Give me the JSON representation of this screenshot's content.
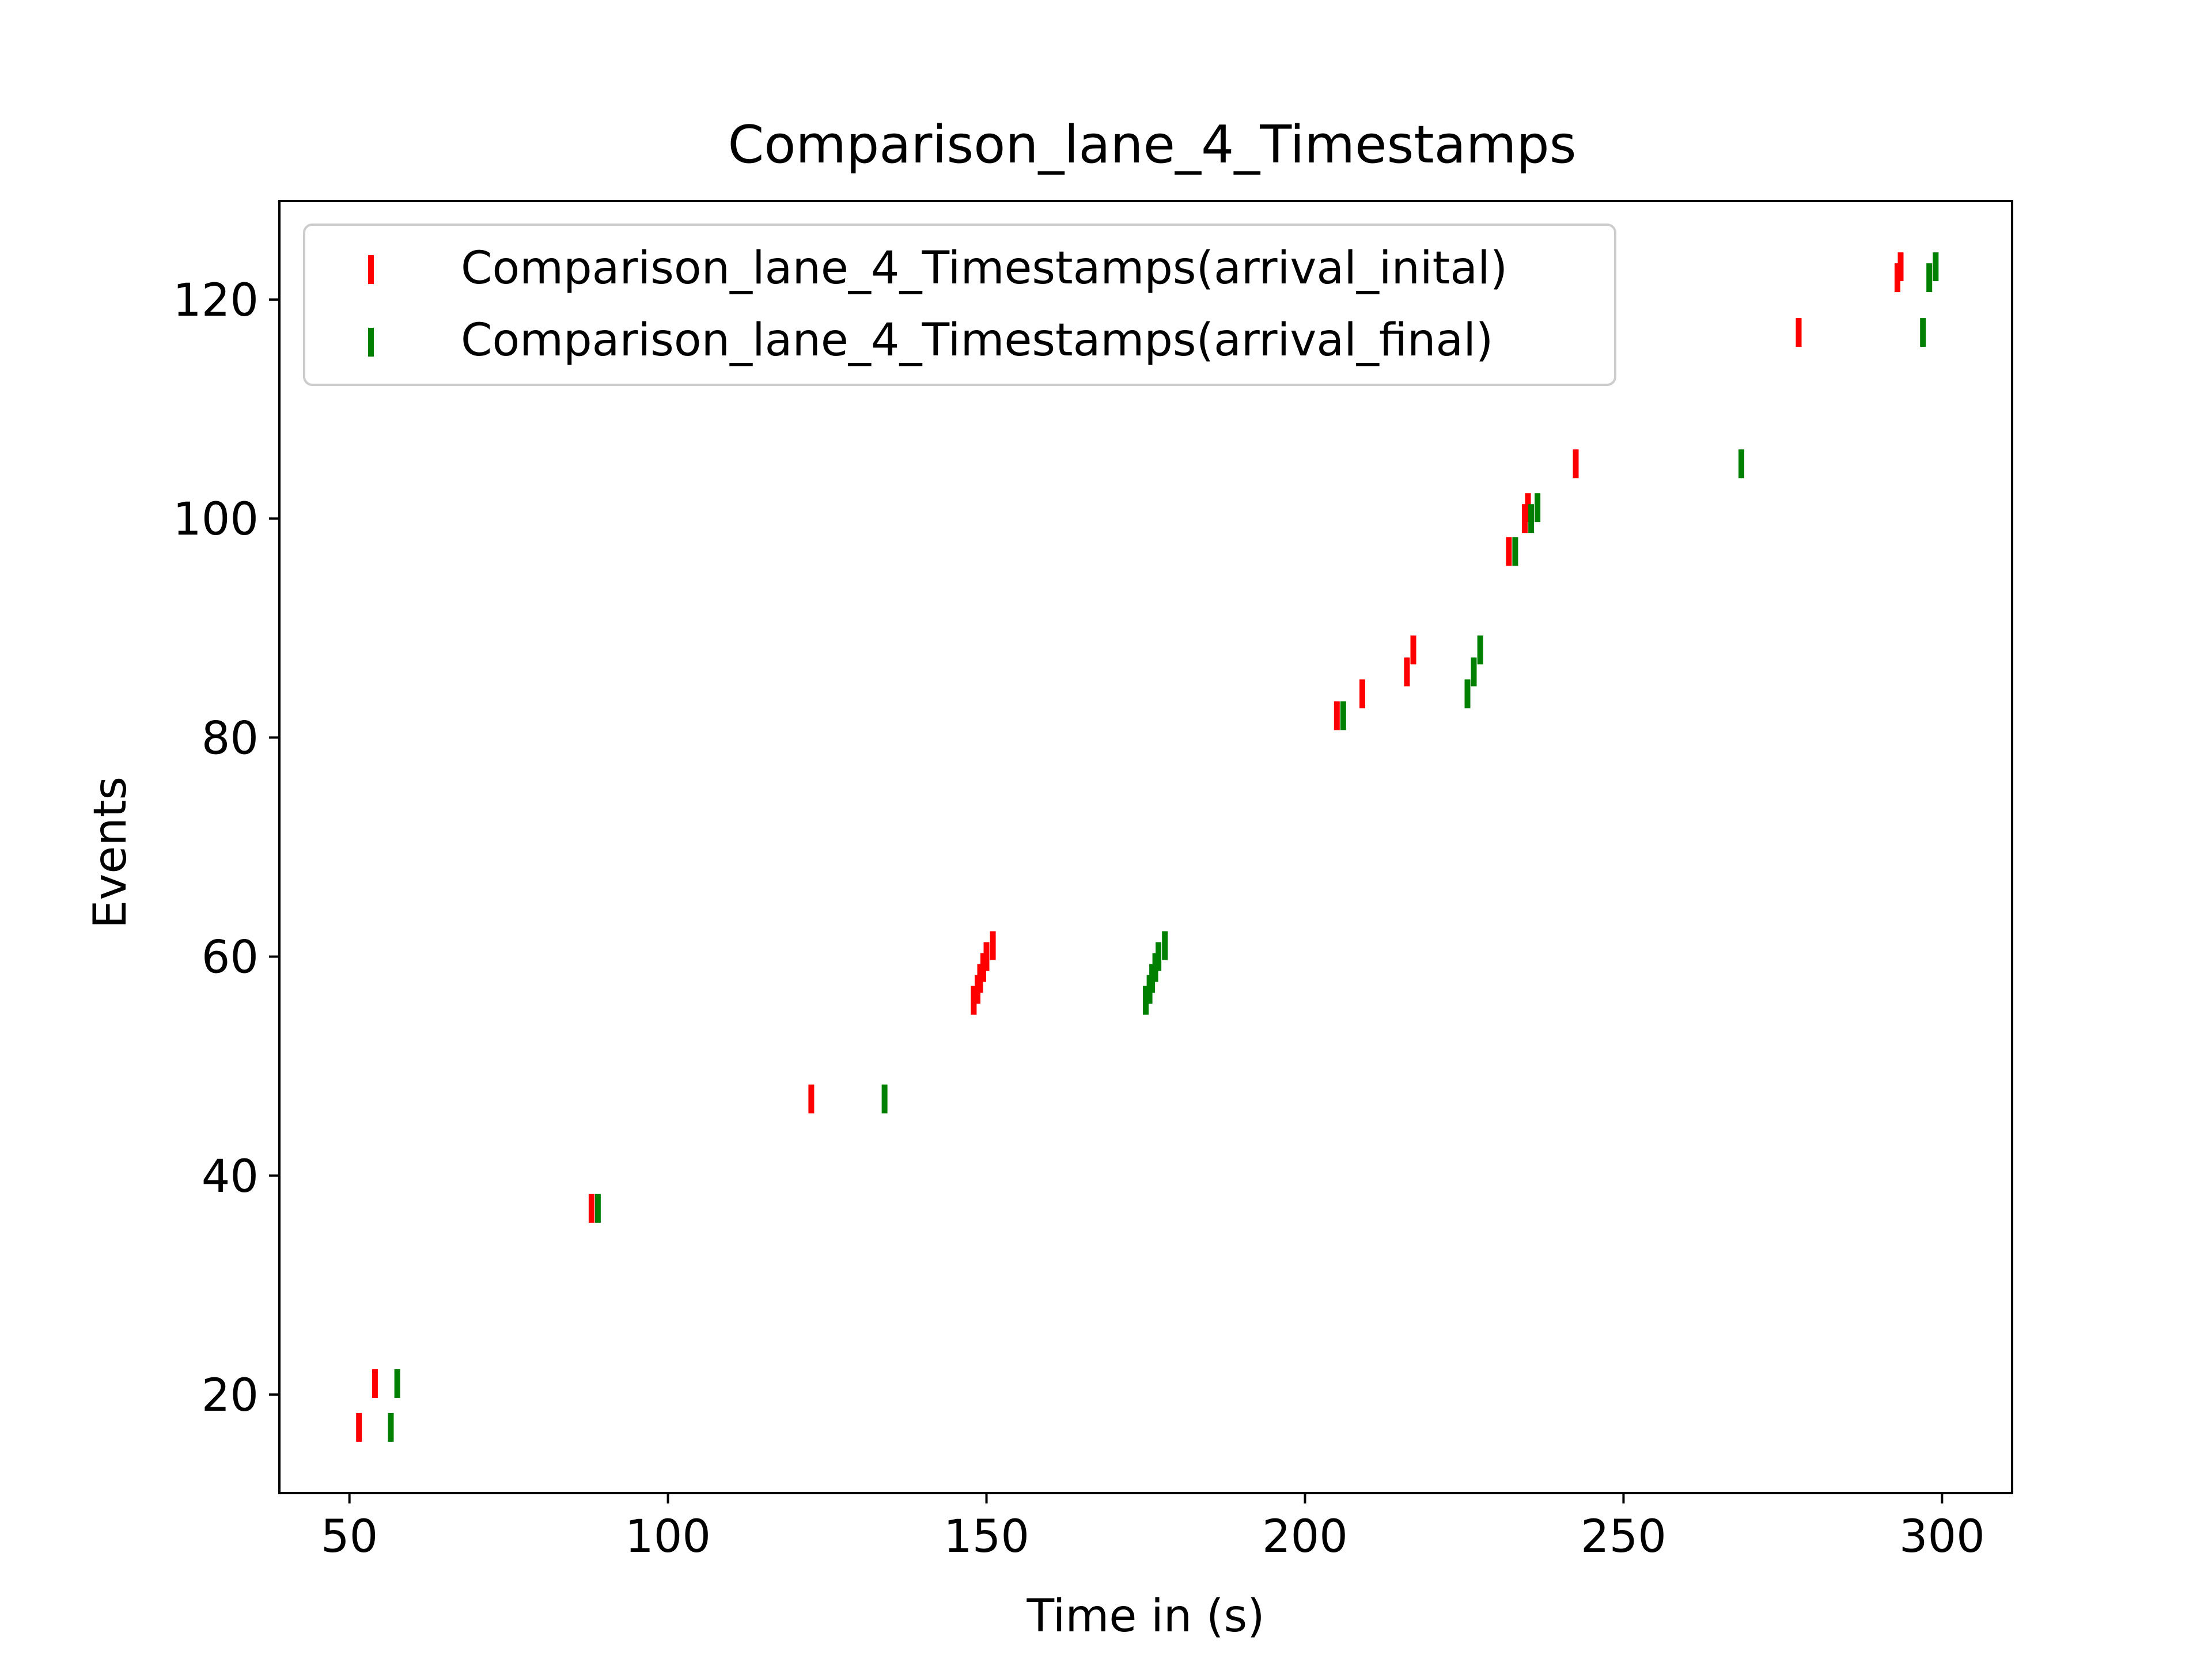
{
  "chart_data": {
    "type": "scatter",
    "marker": "vertical-line",
    "title": "Comparison_lane_4_Timestamps",
    "xlabel": "Time in (s)",
    "ylabel": "Events",
    "xlim": [
      39,
      311
    ],
    "ylim": [
      11,
      129
    ],
    "xticks": [
      50,
      100,
      150,
      200,
      250,
      300
    ],
    "yticks": [
      20,
      40,
      60,
      80,
      100,
      120
    ],
    "grid": false,
    "legend_position": "top-left",
    "series": [
      {
        "name": "Comparison_lane_4_Timestamps(arrival_inital)",
        "color": "#ff0000",
        "points": [
          [
            51.5,
            17
          ],
          [
            54.0,
            21
          ],
          [
            88.0,
            37
          ],
          [
            122.5,
            47
          ],
          [
            148.0,
            56
          ],
          [
            148.6,
            57
          ],
          [
            149.0,
            58
          ],
          [
            149.5,
            59
          ],
          [
            150.0,
            60
          ],
          [
            151.0,
            61
          ],
          [
            205.0,
            82
          ],
          [
            209.0,
            84
          ],
          [
            216.0,
            86
          ],
          [
            217.0,
            88
          ],
          [
            232.0,
            97
          ],
          [
            234.5,
            100
          ],
          [
            235.0,
            101
          ],
          [
            242.5,
            105
          ],
          [
            277.5,
            117
          ],
          [
            293.0,
            122
          ],
          [
            293.5,
            123
          ]
        ]
      },
      {
        "name": "Comparison_lane_4_Timestamps(arrival_final)",
        "color": "#008000",
        "points": [
          [
            56.5,
            17
          ],
          [
            57.5,
            21
          ],
          [
            89.0,
            37
          ],
          [
            134.0,
            47
          ],
          [
            175.0,
            56
          ],
          [
            175.6,
            57
          ],
          [
            176.0,
            58
          ],
          [
            176.5,
            59
          ],
          [
            177.0,
            60
          ],
          [
            178.0,
            61
          ],
          [
            206.0,
            82
          ],
          [
            225.5,
            84
          ],
          [
            226.5,
            86
          ],
          [
            227.5,
            88
          ],
          [
            233.0,
            97
          ],
          [
            235.5,
            100
          ],
          [
            236.5,
            101
          ],
          [
            268.5,
            105
          ],
          [
            297.0,
            117
          ],
          [
            298.0,
            122
          ],
          [
            299.0,
            123
          ]
        ]
      }
    ]
  }
}
